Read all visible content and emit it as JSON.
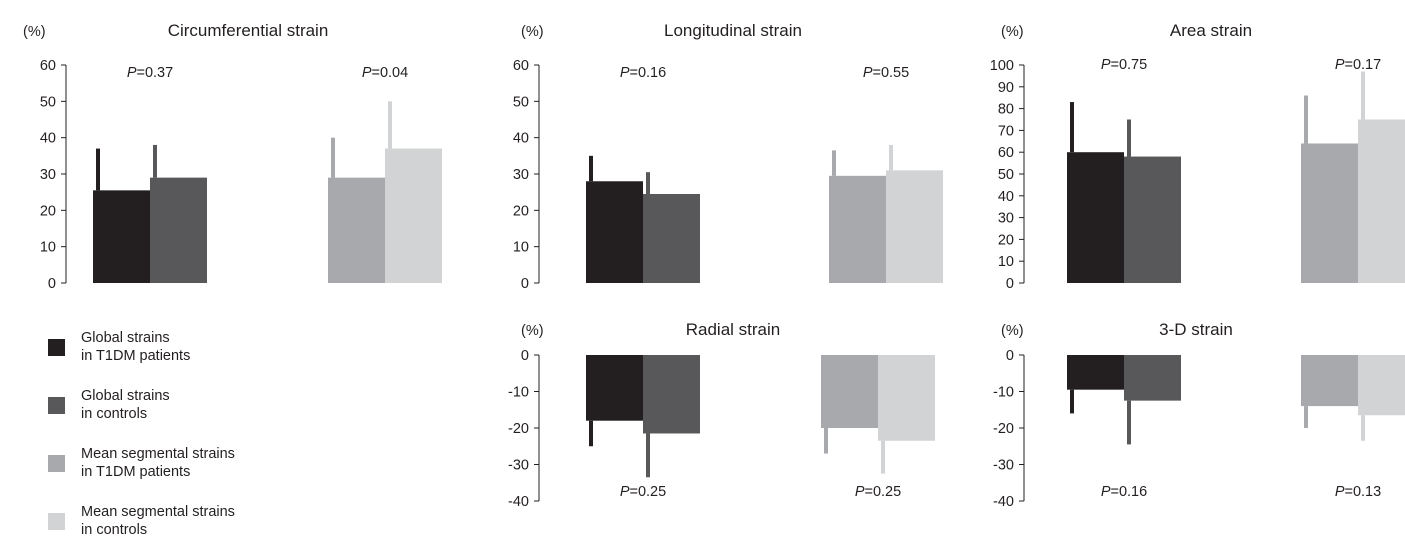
{
  "figure": {
    "colors": {
      "global_t1dm": "#231f20",
      "global_controls": "#58585a",
      "segmental_t1dm": "#a7a9ac",
      "segmental_controls": "#d1d3d4",
      "axis": "#231f20"
    },
    "legend": [
      {
        "label_line1": "Global strains",
        "label_line2": "in T1DM patients",
        "color": "#231f20"
      },
      {
        "label_line1": "Global strains",
        "label_line2": "in controls",
        "color": "#58585a"
      },
      {
        "label_line1": "Mean segmental strains",
        "label_line2": "in T1DM patients",
        "color": "#a7a9ac"
      },
      {
        "label_line1": "Mean segmental strains",
        "label_line2": "in controls",
        "color": "#d1d3d4"
      }
    ]
  },
  "chart_data": [
    {
      "type": "bar",
      "title": "Circumferential strain",
      "ylabel": "(%)",
      "ylim": [
        0,
        60
      ],
      "yticks": [
        0,
        10,
        20,
        30,
        40,
        50,
        60
      ],
      "groups": [
        {
          "p_label": "P",
          "p_value": "=0.37",
          "bars": [
            {
              "value": 25.5,
              "error": 11.5
            },
            {
              "value": 29,
              "error": 9
            }
          ]
        },
        {
          "p_label": "P",
          "p_value": "=0.04",
          "bars": [
            {
              "value": 29,
              "error": 11
            },
            {
              "value": 37,
              "error": 13
            }
          ]
        }
      ]
    },
    {
      "type": "bar",
      "title": "Longitudinal strain",
      "ylabel": "(%)",
      "ylim": [
        0,
        60
      ],
      "yticks": [
        0,
        10,
        20,
        30,
        40,
        50,
        60
      ],
      "groups": [
        {
          "p_label": "P",
          "p_value": "=0.16",
          "bars": [
            {
              "value": 28,
              "error": 7
            },
            {
              "value": 24.5,
              "error": 6
            }
          ]
        },
        {
          "p_label": "P",
          "p_value": "=0.55",
          "bars": [
            {
              "value": 29.5,
              "error": 7
            },
            {
              "value": 31,
              "error": 7
            }
          ]
        }
      ]
    },
    {
      "type": "bar",
      "title": "Area strain",
      "ylabel": "(%)",
      "ylim": [
        0,
        100
      ],
      "yticks": [
        0,
        10,
        20,
        30,
        40,
        50,
        60,
        70,
        80,
        90,
        100
      ],
      "groups": [
        {
          "p_label": "P",
          "p_value": "=0.75",
          "bars": [
            {
              "value": 60,
              "error": 23
            },
            {
              "value": 58,
              "error": 17
            }
          ]
        },
        {
          "p_label": "P",
          "p_value": "=0.17",
          "bars": [
            {
              "value": 64,
              "error": 22
            },
            {
              "value": 75,
              "error": 22
            }
          ]
        }
      ]
    },
    {
      "type": "bar",
      "title": "Radial strain",
      "ylabel": "(%)",
      "ylim": [
        -40,
        0
      ],
      "yticks": [
        0,
        -10,
        -20,
        -30,
        -40
      ],
      "groups": [
        {
          "p_label": "P",
          "p_value": "=0.25",
          "bars": [
            {
              "value": -18,
              "error": 7
            },
            {
              "value": -21.5,
              "error": 12
            }
          ]
        },
        {
          "p_label": "P",
          "p_value": "=0.25",
          "bars": [
            {
              "value": -20,
              "error": 7
            },
            {
              "value": -23.5,
              "error": 9
            }
          ]
        }
      ]
    },
    {
      "type": "bar",
      "title": "3-D strain",
      "ylabel": "(%)",
      "ylim": [
        -40,
        0
      ],
      "yticks": [
        0,
        -10,
        -20,
        -30,
        -40
      ],
      "groups": [
        {
          "p_label": "P",
          "p_value": "=0.16",
          "bars": [
            {
              "value": -9.5,
              "error": 6.5
            },
            {
              "value": -12.5,
              "error": 12
            }
          ]
        },
        {
          "p_label": "P",
          "p_value": "=0.13",
          "bars": [
            {
              "value": -14,
              "error": 6
            },
            {
              "value": -16.5,
              "error": 7
            }
          ]
        }
      ]
    }
  ]
}
